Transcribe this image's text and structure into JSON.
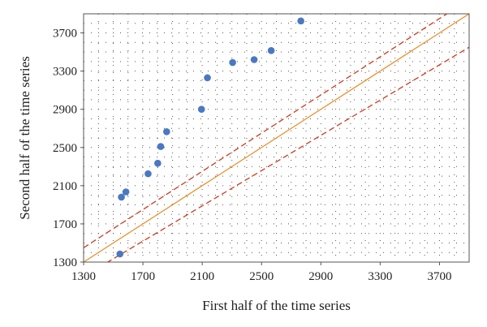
{
  "chart_data": {
    "type": "scatter",
    "title": "",
    "xlabel": "First half of the time series",
    "ylabel": "Second half of the time series",
    "xlim": [
      1300,
      3900
    ],
    "ylim": [
      1300,
      3900
    ],
    "xticks": [
      1300,
      1700,
      2100,
      2500,
      2900,
      3300,
      3700
    ],
    "yticks": [
      1300,
      1700,
      2100,
      2500,
      2900,
      3300,
      3700
    ],
    "grid": "dotted",
    "series": [
      {
        "type": "scatter",
        "color": "#4a78c2",
        "points": [
          {
            "x": 1545,
            "y": 1385
          },
          {
            "x": 1555,
            "y": 1980
          },
          {
            "x": 1585,
            "y": 2035
          },
          {
            "x": 1735,
            "y": 2225
          },
          {
            "x": 1800,
            "y": 2335
          },
          {
            "x": 1820,
            "y": 2510
          },
          {
            "x": 1860,
            "y": 2665
          },
          {
            "x": 2095,
            "y": 2900
          },
          {
            "x": 2135,
            "y": 3230
          },
          {
            "x": 2305,
            "y": 3390
          },
          {
            "x": 2450,
            "y": 3420
          },
          {
            "x": 2565,
            "y": 3515
          },
          {
            "x": 2765,
            "y": 3825
          }
        ]
      },
      {
        "type": "line",
        "style": "solid",
        "color": "#e8912d",
        "x": [
          1300,
          3900
        ],
        "y": [
          1300,
          3900
        ]
      },
      {
        "type": "line",
        "style": "dashed",
        "color": "#cc3a1c",
        "x": [
          1300,
          3900
        ],
        "y": [
          1450,
          4050
        ]
      },
      {
        "type": "line",
        "style": "dashed",
        "color": "#cc3a1c",
        "x": [
          1300,
          3900
        ],
        "y": [
          1150,
          3550
        ]
      }
    ]
  }
}
